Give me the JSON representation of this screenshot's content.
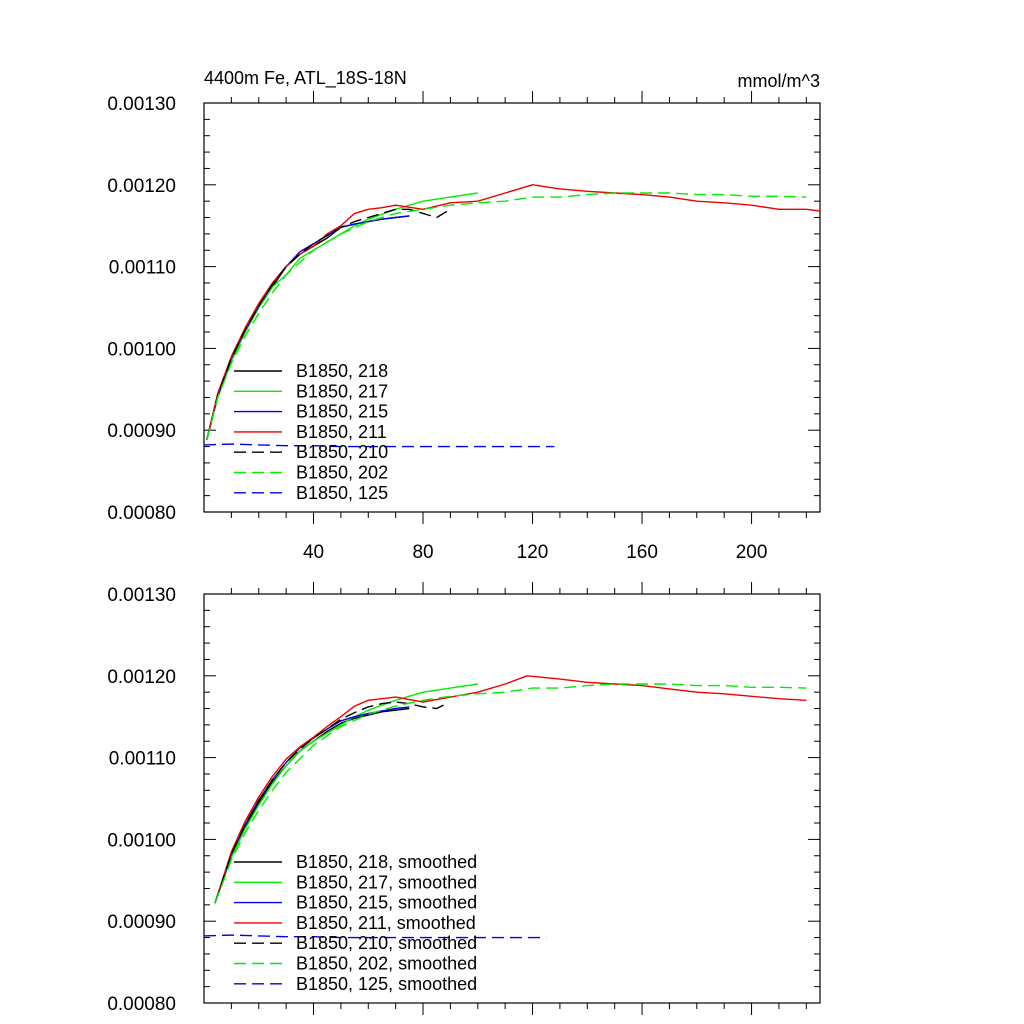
{
  "chart_data": [
    {
      "type": "line",
      "title": "4400m Fe, ATL_18S-18N",
      "units": "mmol/m^3",
      "xlim": [
        0,
        225
      ],
      "ylim": [
        0.0008,
        0.0013
      ],
      "x_ticks": [
        40,
        80,
        120,
        160,
        200
      ],
      "x_tick_labels": [
        "40",
        "80",
        "120",
        "160",
        "200"
      ],
      "y_ticks": [
        0.0008,
        0.0009,
        0.001,
        0.0011,
        0.0012,
        0.0013
      ],
      "y_tick_labels": [
        "0.00080",
        "0.00090",
        "0.00100",
        "0.00110",
        "0.00120",
        "0.00130"
      ],
      "grid": false,
      "legend_position": "lower-left",
      "series": [
        {
          "name": "B1850, 218",
          "color": "#000000",
          "dash": "solid",
          "x": [
            1,
            5,
            10,
            15,
            20,
            25,
            30,
            35,
            40,
            45,
            50,
            55,
            60,
            65,
            70,
            75
          ],
          "y": [
            0.000888,
            0.00094,
            0.000985,
            0.00102,
            0.00105,
            0.001075,
            0.0011,
            0.001115,
            0.001125,
            0.001135,
            0.001148,
            0.001152,
            0.001155,
            0.001158,
            0.00116,
            0.001162
          ]
        },
        {
          "name": "B1850, 217",
          "color": "#00ee00",
          "dash": "solid",
          "x": [
            1,
            5,
            10,
            15,
            20,
            25,
            30,
            35,
            40,
            45,
            50,
            55,
            60,
            70,
            80,
            90,
            100
          ],
          "y": [
            0.000888,
            0.00094,
            0.000985,
            0.00102,
            0.00105,
            0.001075,
            0.00109,
            0.00111,
            0.00112,
            0.00113,
            0.00114,
            0.00115,
            0.001158,
            0.00117,
            0.00118,
            0.001185,
            0.00119
          ]
        },
        {
          "name": "B1850, 215",
          "color": "#0000ee",
          "dash": "solid",
          "x": [
            1,
            5,
            10,
            15,
            20,
            25,
            30,
            35,
            40,
            45,
            50,
            55,
            60,
            65,
            70,
            75
          ],
          "y": [
            0.000888,
            0.000942,
            0.000988,
            0.001022,
            0.001052,
            0.001078,
            0.0011,
            0.001118,
            0.001128,
            0.001138,
            0.001148,
            0.001152,
            0.001155,
            0.001158,
            0.00116,
            0.001162
          ]
        },
        {
          "name": "B1850, 211",
          "color": "#ee0000",
          "dash": "solid",
          "x": [
            1,
            5,
            10,
            15,
            20,
            25,
            30,
            35,
            40,
            45,
            50,
            55,
            60,
            65,
            70,
            80,
            90,
            100,
            110,
            120,
            130,
            140,
            150,
            160,
            170,
            180,
            190,
            200,
            210,
            220,
            225
          ],
          "y": [
            0.000888,
            0.000945,
            0.00099,
            0.001025,
            0.001055,
            0.00108,
            0.0011,
            0.001115,
            0.001125,
            0.00114,
            0.00115,
            0.001165,
            0.00117,
            0.001172,
            0.001175,
            0.00117,
            0.001178,
            0.00118,
            0.00119,
            0.0012,
            0.001195,
            0.001192,
            0.00119,
            0.001188,
            0.001185,
            0.00118,
            0.001178,
            0.001175,
            0.00117,
            0.00117,
            0.001168
          ]
        },
        {
          "name": "B1850, 210",
          "color": "#000000",
          "dash": "long",
          "x": [
            1,
            5,
            10,
            15,
            20,
            25,
            30,
            35,
            40,
            45,
            50,
            55,
            60,
            65,
            70,
            75,
            80,
            85,
            90
          ],
          "y": [
            0.000888,
            0.000942,
            0.000988,
            0.001022,
            0.001052,
            0.001078,
            0.0011,
            0.001115,
            0.001128,
            0.001138,
            0.001148,
            0.001155,
            0.00116,
            0.001165,
            0.00117,
            0.00117,
            0.001165,
            0.00116,
            0.00117
          ]
        },
        {
          "name": "B1850, 202",
          "color": "#00ee00",
          "dash": "long",
          "x": [
            1,
            5,
            10,
            15,
            20,
            25,
            30,
            40,
            50,
            60,
            70,
            80,
            90,
            100,
            110,
            120,
            130,
            140,
            150,
            160,
            170,
            180,
            190,
            200,
            210,
            220
          ],
          "y": [
            0.000888,
            0.00094,
            0.000982,
            0.001015,
            0.001043,
            0.001068,
            0.00109,
            0.00112,
            0.00114,
            0.001155,
            0.001165,
            0.00117,
            0.001175,
            0.001178,
            0.00118,
            0.001185,
            0.001185,
            0.001188,
            0.00119,
            0.00119,
            0.00119,
            0.001188,
            0.001188,
            0.001186,
            0.001186,
            0.001185
          ]
        },
        {
          "name": "B1850, 125",
          "color": "#0000ee",
          "dash": "long",
          "x": [
            0,
            10,
            20,
            30,
            40,
            50,
            60,
            70,
            80,
            90,
            100,
            110,
            120,
            128
          ],
          "y": [
            0.000882,
            0.000883,
            0.000882,
            0.000881,
            0.000881,
            0.00088,
            0.00088,
            0.00088,
            0.00088,
            0.00088,
            0.00088,
            0.00088,
            0.00088,
            0.00088
          ]
        }
      ]
    },
    {
      "type": "line",
      "xlim": [
        0,
        225
      ],
      "ylim": [
        0.0008,
        0.0013
      ],
      "y_ticks": [
        0.0008,
        0.0009,
        0.001,
        0.0011,
        0.0012,
        0.0013
      ],
      "y_tick_labels": [
        "0.00080",
        "0.00090",
        "0.00100",
        "0.00110",
        "0.00120",
        "0.00130"
      ],
      "grid": false,
      "legend_position": "lower-left",
      "series": [
        {
          "name": "B1850, 218, smoothed",
          "color": "#000000",
          "dash": "solid",
          "x": [
            4,
            10,
            15,
            20,
            25,
            30,
            35,
            40,
            45,
            50,
            55,
            60,
            65,
            70,
            75
          ],
          "y": [
            0.000922,
            0.00098,
            0.001015,
            0.001045,
            0.00107,
            0.00109,
            0.001108,
            0.00112,
            0.001132,
            0.001142,
            0.001148,
            0.001152,
            0.001156,
            0.001158,
            0.00116
          ]
        },
        {
          "name": "B1850, 217, smoothed",
          "color": "#00ee00",
          "dash": "solid",
          "x": [
            4,
            10,
            15,
            20,
            25,
            30,
            35,
            40,
            45,
            50,
            55,
            60,
            70,
            80,
            90,
            100
          ],
          "y": [
            0.000922,
            0.000978,
            0.001013,
            0.001042,
            0.001068,
            0.00109,
            0.001108,
            0.00112,
            0.00113,
            0.00114,
            0.00115,
            0.001158,
            0.00117,
            0.00118,
            0.001185,
            0.00119
          ]
        },
        {
          "name": "B1850, 215, smoothed",
          "color": "#0000ee",
          "dash": "solid",
          "x": [
            4,
            10,
            15,
            20,
            25,
            30,
            35,
            40,
            45,
            50,
            55,
            60,
            65,
            70,
            75
          ],
          "y": [
            0.000922,
            0.000982,
            0.001018,
            0.001048,
            0.001073,
            0.001094,
            0.001112,
            0.001124,
            0.001135,
            0.001145,
            0.00115,
            0.001154,
            0.001157,
            0.00116,
            0.001162
          ]
        },
        {
          "name": "B1850, 211, smoothed",
          "color": "#ee0000",
          "dash": "solid",
          "x": [
            4,
            10,
            15,
            20,
            25,
            30,
            35,
            40,
            45,
            50,
            55,
            60,
            65,
            70,
            80,
            90,
            100,
            110,
            118,
            130,
            140,
            150,
            160,
            170,
            180,
            190,
            200,
            210,
            220
          ],
          "y": [
            0.000922,
            0.000985,
            0.001022,
            0.001052,
            0.001077,
            0.001098,
            0.001113,
            0.001125,
            0.001138,
            0.00115,
            0.001163,
            0.00117,
            0.001172,
            0.001174,
            0.001168,
            0.001174,
            0.00118,
            0.00119,
            0.0012,
            0.001196,
            0.001192,
            0.00119,
            0.001188,
            0.001184,
            0.00118,
            0.001178,
            0.001175,
            0.001172,
            0.00117
          ]
        },
        {
          "name": "B1850, 210, smoothed",
          "color": "#000000",
          "dash": "long",
          "x": [
            4,
            10,
            15,
            20,
            25,
            30,
            35,
            40,
            45,
            50,
            55,
            60,
            65,
            70,
            75,
            80,
            85,
            88
          ],
          "y": [
            0.000922,
            0.000982,
            0.001018,
            0.001048,
            0.001073,
            0.001094,
            0.00111,
            0.001124,
            0.001135,
            0.001147,
            0.001155,
            0.001162,
            0.001166,
            0.001168,
            0.001166,
            0.001162,
            0.00116,
            0.001165
          ]
        },
        {
          "name": "B1850, 202, smoothed",
          "color": "#00ee00",
          "dash": "long",
          "x": [
            4,
            10,
            15,
            20,
            25,
            30,
            40,
            50,
            60,
            70,
            80,
            90,
            100,
            110,
            120,
            130,
            140,
            150,
            160,
            170,
            180,
            190,
            200,
            210,
            220
          ],
          "y": [
            0.000922,
            0.000975,
            0.001008,
            0.001036,
            0.00106,
            0.001082,
            0.001115,
            0.001138,
            0.001153,
            0.001163,
            0.00117,
            0.001175,
            0.001178,
            0.00118,
            0.001185,
            0.001185,
            0.001188,
            0.00119,
            0.00119,
            0.00119,
            0.001188,
            0.001188,
            0.001186,
            0.001186,
            0.001185
          ]
        },
        {
          "name": "B1850, 125, smoothed",
          "color": "#0000ee",
          "dash": "long",
          "x": [
            0,
            10,
            20,
            30,
            40,
            50,
            60,
            70,
            80,
            90,
            100,
            110,
            120,
            125
          ],
          "y": [
            0.000882,
            0.000883,
            0.000882,
            0.000881,
            0.000881,
            0.00088,
            0.00088,
            0.00088,
            0.00088,
            0.00088,
            0.00088,
            0.00088,
            0.00088,
            0.00088
          ]
        }
      ]
    }
  ]
}
